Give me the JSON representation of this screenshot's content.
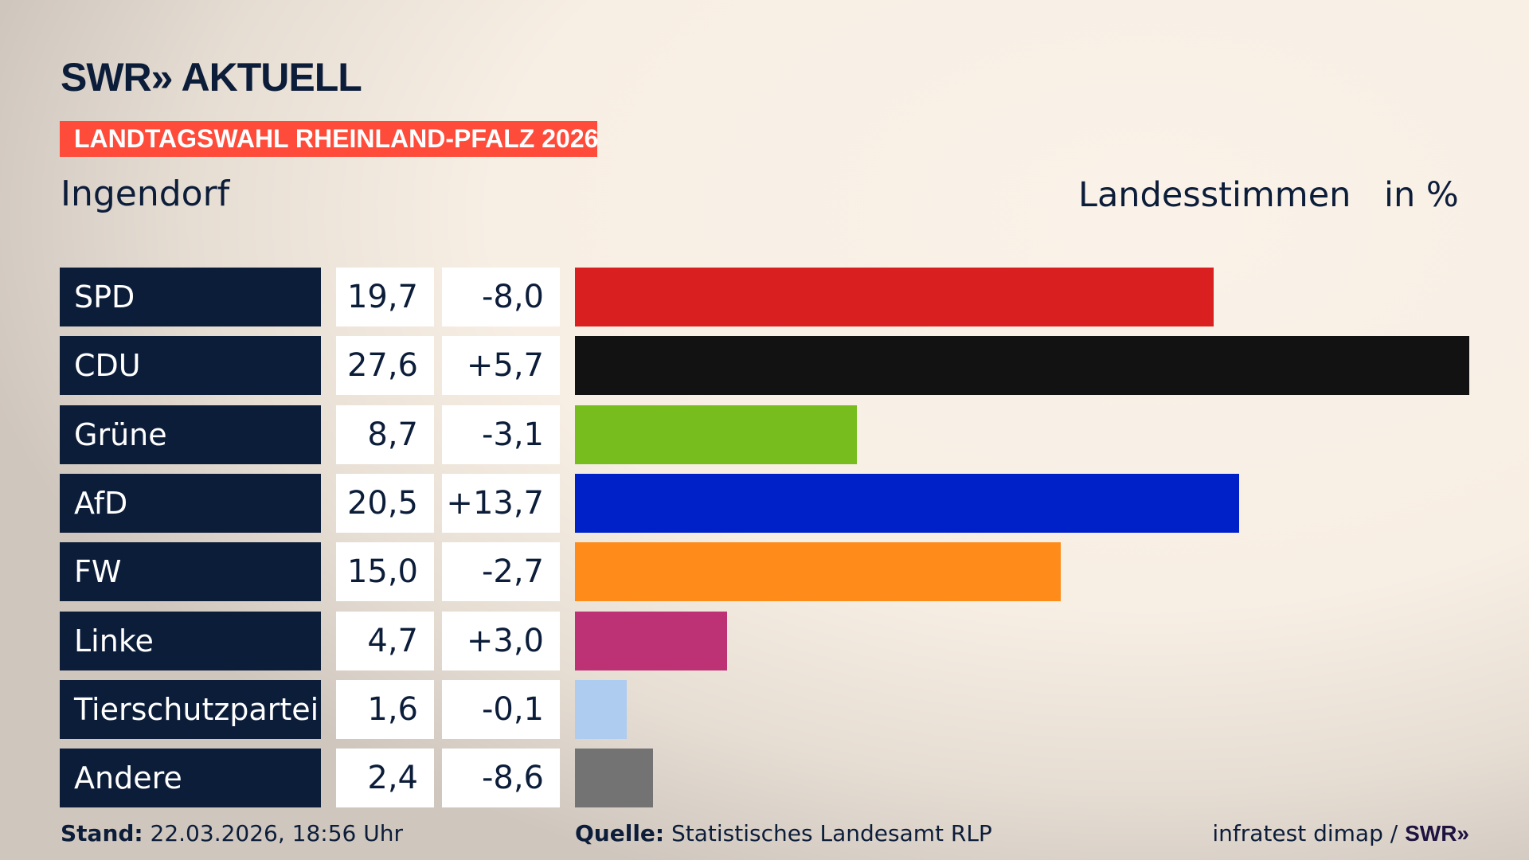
{
  "header": {
    "logo": "SWR» AKTUELL",
    "banner": "LANDTAGSWAHL RHEINLAND-PFALZ 2026",
    "place": "Ingendorf",
    "measure": "Landesstimmen",
    "unit": "in %"
  },
  "chart_data": {
    "type": "bar",
    "orientation": "horizontal",
    "title": "Landesstimmen in %",
    "categories": [
      "SPD",
      "CDU",
      "Grüne",
      "AfD",
      "FW",
      "Linke",
      "Tierschutzpartei",
      "Andere"
    ],
    "values": [
      19.7,
      27.6,
      8.7,
      20.5,
      15.0,
      4.7,
      1.6,
      2.4
    ],
    "values_label": [
      "19,7",
      "27,6",
      "8,7",
      "20,5",
      "15,0",
      "4,7",
      "1,6",
      "2,4"
    ],
    "diff_label": [
      "-8,0",
      "+5,7",
      "-3,1",
      "+13,7",
      "-2,7",
      "+3,0",
      "-0,1",
      "-8,6"
    ],
    "diff": [
      -8.0,
      5.7,
      -3.1,
      13.7,
      -2.7,
      3.0,
      -0.1,
      -8.6
    ],
    "colors": [
      "#d91f20",
      "#121212",
      "#78bd1e",
      "#0020c8",
      "#ff8c1a",
      "#bc3275",
      "#aecbf0",
      "#737373"
    ],
    "xlim": [
      0,
      27.6
    ]
  },
  "footer": {
    "stand_label": "Stand:",
    "stand_value": "22.03.2026, 18:56 Uhr",
    "source_label": "Quelle:",
    "source_value": "Statistisches Landesamt RLP",
    "credit": "infratest dimap / ",
    "credit_logo": "SWR»"
  }
}
